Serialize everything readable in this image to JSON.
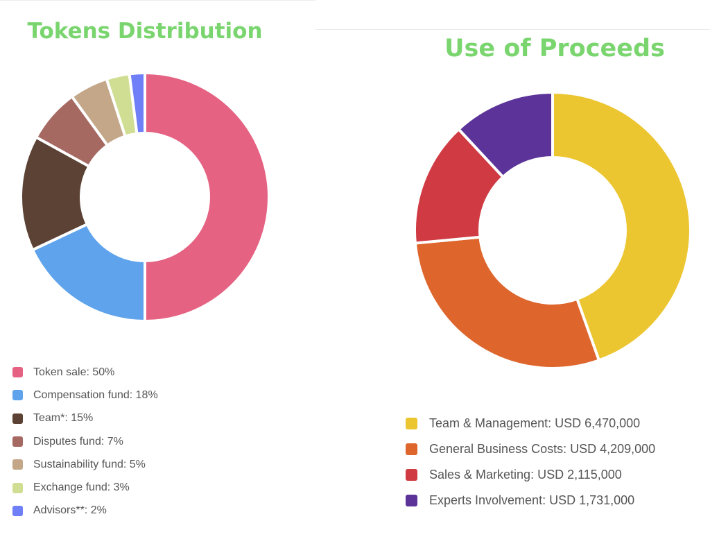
{
  "chart_data": [
    {
      "type": "pie",
      "title": "Tokens Distribution",
      "categories": [
        "Token sale",
        "Compensation fund",
        "Team*",
        "Disputes fund",
        "Sustainability fund",
        "Exchange fund",
        "Advisors**"
      ],
      "values": [
        50,
        18,
        15,
        7,
        5,
        3,
        2
      ],
      "legend_labels": [
        "Token sale: 50%",
        "Compensation fund: 18%",
        "Team*: 15%",
        "Disputes fund: 7%",
        "Sustainability fund: 5%",
        "Exchange fund: 3%",
        "Advisors**: 2%"
      ],
      "colors": [
        "#e56282",
        "#5ea3ec",
        "#5b4234",
        "#a56962",
        "#c3a788",
        "#cfde92",
        "#6e7ff8"
      ],
      "legend_position": "bottom"
    },
    {
      "type": "pie",
      "title": "Use of Proceeds",
      "categories": [
        "Team & Management",
        "General Business Costs",
        "Sales & Marketing",
        "Experts Involvement"
      ],
      "values": [
        6470000,
        4209000,
        2115000,
        1731000
      ],
      "legend_labels": [
        "Team & Management: USD 6,470,000",
        "General Business Costs: USD 4,209,000",
        "Sales & Marketing: USD 2,115,000",
        "Experts Involvement: USD 1,731,000"
      ],
      "colors": [
        "#ecc631",
        "#de652c",
        "#d03a43",
        "#5c3499"
      ],
      "legend_position": "bottom"
    }
  ]
}
